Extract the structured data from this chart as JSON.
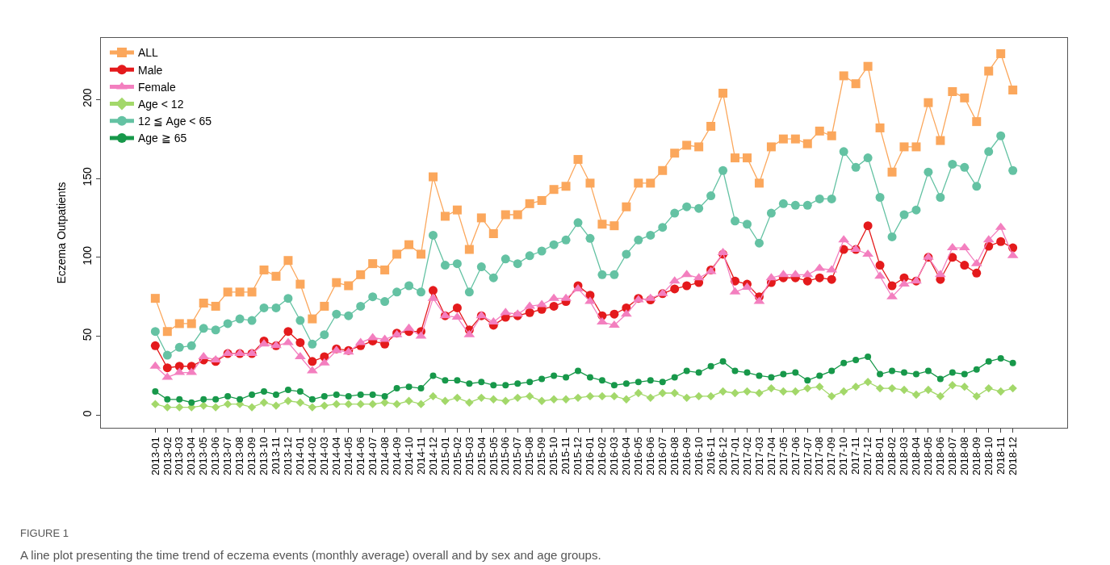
{
  "chart_data": {
    "type": "line",
    "ylabel": "Eczema Outpatients",
    "annotations": [
      "FIGURE 1",
      "A line plot presenting the time trend of eczema events (monthly average) overall and by sex and age groups."
    ],
    "categories": [
      "2013-01",
      "2013-02",
      "2013-03",
      "2013-04",
      "2013-05",
      "2013-06",
      "2013-07",
      "2013-08",
      "2013-09",
      "2013-10",
      "2013-11",
      "2013-12",
      "2014-01",
      "2014-02",
      "2014-03",
      "2014-04",
      "2014-05",
      "2014-06",
      "2014-07",
      "2014-08",
      "2014-09",
      "2014-10",
      "2014-11",
      "2014-12",
      "2015-01",
      "2015-02",
      "2015-03",
      "2015-04",
      "2015-05",
      "2015-06",
      "2015-07",
      "2015-08",
      "2015-09",
      "2015-10",
      "2015-11",
      "2015-12",
      "2016-01",
      "2016-02",
      "2016-03",
      "2016-04",
      "2016-05",
      "2016-06",
      "2016-07",
      "2016-08",
      "2016-09",
      "2016-10",
      "2016-11",
      "2016-12",
      "2017-01",
      "2017-02",
      "2017-03",
      "2017-04",
      "2017-05",
      "2017-06",
      "2017-07",
      "2017-08",
      "2017-09",
      "2017-10",
      "2017-11",
      "2017-12",
      "2018-01",
      "2018-02",
      "2018-03",
      "2018-04",
      "2018-05",
      "2018-06",
      "2018-07",
      "2018-08",
      "2018-09",
      "2018-10",
      "2018-11",
      "2018-12"
    ],
    "series": [
      {
        "name": "ALL",
        "color": "#fba75c",
        "marker": "square",
        "values": [
          74,
          53,
          58,
          58,
          71,
          69,
          78,
          78,
          78,
          92,
          88,
          98,
          83,
          61,
          69,
          84,
          82,
          89,
          96,
          92,
          102,
          108,
          102,
          151,
          126,
          130,
          105,
          125,
          115,
          127,
          127,
          134,
          136,
          143,
          145,
          162,
          147,
          121,
          120,
          132,
          147,
          147,
          155,
          166,
          171,
          170,
          183,
          204,
          163,
          163,
          147,
          170,
          175,
          175,
          172,
          180,
          177,
          215,
          210,
          221,
          182,
          154,
          170,
          170,
          198,
          174,
          205,
          201,
          186,
          218,
          229,
          206
        ]
      },
      {
        "name": "Male",
        "color": "#e41a1c",
        "marker": "circle",
        "values": [
          44,
          30,
          31,
          31,
          35,
          34,
          39,
          39,
          39,
          47,
          44,
          53,
          46,
          34,
          37,
          42,
          41,
          44,
          47,
          45,
          52,
          53,
          53,
          79,
          63,
          68,
          54,
          63,
          57,
          62,
          63,
          65,
          67,
          69,
          72,
          82,
          76,
          63,
          64,
          68,
          74,
          73,
          77,
          80,
          82,
          84,
          92,
          102,
          85,
          83,
          75,
          84,
          87,
          87,
          85,
          87,
          86,
          105,
          105,
          120,
          95,
          82,
          87,
          85,
          100,
          86,
          100,
          95,
          90,
          107,
          110,
          106
        ]
      },
      {
        "name": "Female",
        "color": "#f37fbf",
        "marker": "triangle",
        "values": [
          31,
          24,
          27,
          27,
          37,
          35,
          39,
          39,
          39,
          45,
          44,
          46,
          37,
          28,
          33,
          41,
          40,
          46,
          49,
          48,
          51,
          55,
          50,
          74,
          63,
          62,
          51,
          63,
          59,
          65,
          64,
          69,
          70,
          74,
          74,
          80,
          72,
          59,
          57,
          64,
          73,
          74,
          77,
          85,
          89,
          87,
          91,
          103,
          78,
          81,
          72,
          87,
          89,
          89,
          89,
          93,
          92,
          111,
          105,
          102,
          88,
          75,
          83,
          85,
          100,
          89,
          106,
          106,
          96,
          111,
          119,
          101
        ]
      },
      {
        "name": "Age < 12",
        "color": "#a3d86a",
        "marker": "diamond",
        "values": [
          7,
          5,
          5,
          5,
          6,
          5,
          7,
          7,
          5,
          8,
          6,
          9,
          8,
          5,
          6,
          7,
          7,
          7,
          7,
          8,
          7,
          9,
          7,
          12,
          9,
          11,
          8,
          11,
          10,
          9,
          11,
          12,
          9,
          10,
          10,
          11,
          12,
          12,
          12,
          10,
          14,
          11,
          14,
          14,
          11,
          12,
          12,
          15,
          14,
          15,
          14,
          17,
          15,
          15,
          17,
          18,
          12,
          15,
          18,
          21,
          17,
          17,
          16,
          13,
          16,
          12,
          19,
          18,
          12,
          17,
          15,
          17
        ]
      },
      {
        "name": "12 ≦ Age < 65",
        "color": "#64c2a3",
        "marker": "circle",
        "values": [
          53,
          38,
          43,
          44,
          55,
          54,
          58,
          61,
          60,
          68,
          68,
          74,
          60,
          45,
          51,
          64,
          63,
          69,
          75,
          72,
          78,
          82,
          78,
          114,
          95,
          96,
          78,
          94,
          87,
          99,
          96,
          101,
          104,
          108,
          111,
          122,
          112,
          89,
          89,
          102,
          111,
          114,
          119,
          128,
          132,
          131,
          139,
          155,
          123,
          121,
          109,
          128,
          134,
          133,
          133,
          137,
          137,
          167,
          157,
          163,
          138,
          113,
          127,
          130,
          154,
          138,
          159,
          157,
          145,
          167,
          177,
          155
        ]
      },
      {
        "name": "Age ≧ 65",
        "color": "#17984a",
        "marker": "circle",
        "values": [
          15,
          10,
          10,
          8,
          10,
          10,
          12,
          10,
          13,
          15,
          13,
          16,
          15,
          10,
          12,
          13,
          12,
          13,
          13,
          12,
          17,
          18,
          17,
          25,
          22,
          22,
          20,
          21,
          19,
          19,
          20,
          21,
          23,
          25,
          24,
          28,
          24,
          22,
          19,
          20,
          21,
          22,
          21,
          24,
          28,
          27,
          31,
          34,
          28,
          27,
          25,
          24,
          26,
          27,
          22,
          25,
          28,
          33,
          35,
          37,
          26,
          28,
          27,
          26,
          28,
          23,
          27,
          26,
          29,
          34,
          36,
          33
        ]
      }
    ],
    "ylim": [
      -8,
      239
    ],
    "yticks": [
      0,
      50,
      100,
      150,
      200
    ],
    "legend": "top left",
    "line_style": "solid"
  }
}
